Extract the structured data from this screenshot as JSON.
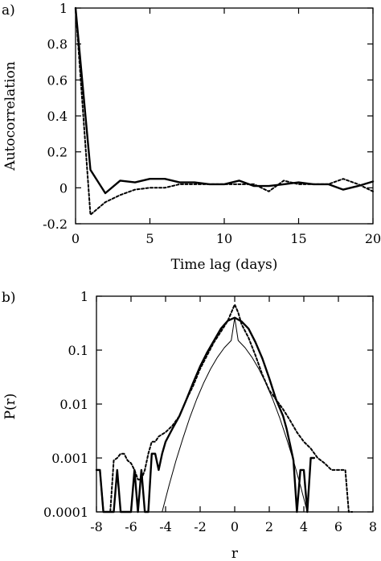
{
  "chart_data": [
    {
      "panel_label": "a)",
      "type": "line",
      "xlabel": "Time lag (days)",
      "ylabel": "Autocorrelation",
      "xlim": [
        0,
        20
      ],
      "ylim": [
        -0.2,
        1
      ],
      "xticks": [
        0,
        5,
        10,
        15,
        20
      ],
      "yticks": [
        -0.2,
        0,
        0.2,
        0.4,
        0.6,
        0.8,
        1
      ],
      "xtick_labels": [
        "0",
        "5",
        "10",
        "15",
        "20"
      ],
      "ytick_labels": [
        "-0.2",
        "0",
        "0.2",
        "0.4",
        "0.6",
        "0.8",
        "1"
      ],
      "grid": false,
      "series": [
        {
          "style": "solid",
          "x": [
            0,
            1,
            2,
            3,
            4,
            5,
            6,
            7,
            8,
            9,
            10,
            11,
            12,
            13,
            14,
            15,
            16,
            17,
            18,
            19,
            20
          ],
          "y": [
            1,
            0.1,
            -0.03,
            0.04,
            0.03,
            0.05,
            0.05,
            0.03,
            0.03,
            0.02,
            0.02,
            0.04,
            0.01,
            0.01,
            0.02,
            0.03,
            0.02,
            0.02,
            -0.01,
            0.01,
            0.035
          ]
        },
        {
          "style": "dotted",
          "x": [
            0,
            1,
            2,
            3,
            4,
            5,
            6,
            7,
            8,
            9,
            10,
            11,
            12,
            13,
            14,
            15,
            16,
            17,
            18,
            19,
            20
          ],
          "y": [
            1,
            -0.15,
            -0.08,
            -0.04,
            -0.01,
            0,
            0,
            0.02,
            0.02,
            0.02,
            0.02,
            0.02,
            0.02,
            -0.02,
            0.04,
            0.02,
            0.02,
            0.02,
            0.05,
            0.02,
            -0.02
          ]
        }
      ]
    },
    {
      "panel_label": "b)",
      "type": "line",
      "xlabel": "r",
      "ylabel": "P(r)",
      "xlim": [
        -8,
        8
      ],
      "ylim": [
        0.0001,
        1
      ],
      "yscale": "log",
      "xticks": [
        -8,
        -6,
        -4,
        -2,
        0,
        2,
        4,
        6,
        8
      ],
      "yticks": [
        0.0001,
        0.001,
        0.01,
        0.1,
        1
      ],
      "xtick_labels": [
        "-8",
        "-6",
        "-4",
        "-2",
        "0",
        "2",
        "4",
        "6",
        "8"
      ],
      "ytick_labels": [
        "0.0001",
        "0.001",
        "0.01",
        "0.1",
        "1"
      ],
      "grid": false,
      "series": [
        {
          "style": "solid-thick",
          "x": [
            -8.0,
            -7.8,
            -7.6,
            -7.4,
            -7.2,
            -7.0,
            -6.8,
            -6.6,
            -6.4,
            -6.2,
            -6.0,
            -5.8,
            -5.6,
            -5.4,
            -5.2,
            -5.0,
            -4.8,
            -4.6,
            -4.4,
            -4.2,
            -4.0,
            -3.6,
            -3.2,
            -2.8,
            -2.4,
            -2.0,
            -1.6,
            -1.2,
            -0.8,
            -0.4,
            0.0,
            0.4,
            0.8,
            1.2,
            1.6,
            2.0,
            2.4,
            2.8,
            3.0,
            3.2,
            3.4,
            3.6,
            3.8,
            4.0,
            4.2,
            4.4,
            4.6
          ],
          "y": [
            0.0006,
            0.0006,
            0.0001,
            0.0001,
            0.0001,
            0.0001,
            0.0006,
            0.0001,
            0.0001,
            0.0001,
            0.0001,
            0.0006,
            0.0001,
            0.0006,
            0.0001,
            0.0001,
            0.0012,
            0.0012,
            0.0006,
            0.0012,
            0.002,
            0.0035,
            0.006,
            0.012,
            0.025,
            0.05,
            0.09,
            0.15,
            0.25,
            0.35,
            0.4,
            0.34,
            0.25,
            0.14,
            0.07,
            0.03,
            0.012,
            0.006,
            0.0035,
            0.0018,
            0.0009,
            0.0001,
            0.0006,
            0.0006,
            0.0001,
            0.001,
            0.001
          ]
        },
        {
          "style": "dotted",
          "x": [
            -8.0,
            -7.8,
            -7.6,
            -7.2,
            -7.0,
            -6.8,
            -6.6,
            -6.4,
            -6.2,
            -6.0,
            -5.8,
            -5.6,
            -5.4,
            -5.2,
            -5.0,
            -4.8,
            -4.6,
            -4.4,
            -4.0,
            -3.6,
            -3.2,
            -2.8,
            -2.4,
            -2.0,
            -1.6,
            -1.2,
            -0.8,
            -0.4,
            0.0,
            0.2,
            0.4,
            0.8,
            1.2,
            1.6,
            2.0,
            2.4,
            2.8,
            3.2,
            3.6,
            4.0,
            4.4,
            4.8,
            5.2,
            5.6,
            6.0,
            6.4,
            6.6,
            6.8
          ],
          "y": [
            0.0006,
            0.0006,
            0.0001,
            0.0001,
            0.0009,
            0.001,
            0.0012,
            0.0012,
            0.0009,
            0.0008,
            0.0006,
            0.0004,
            0.0004,
            0.0006,
            0.0012,
            0.002,
            0.002,
            0.0025,
            0.003,
            0.004,
            0.006,
            0.012,
            0.022,
            0.045,
            0.08,
            0.14,
            0.22,
            0.35,
            0.7,
            0.5,
            0.3,
            0.17,
            0.08,
            0.035,
            0.018,
            0.012,
            0.008,
            0.005,
            0.003,
            0.002,
            0.0015,
            0.001,
            0.0008,
            0.0006,
            0.0006,
            0.0006,
            0.0001,
            0.0001
          ]
        },
        {
          "style": "solid-thin",
          "x": [
            -4.2,
            -3.8,
            -3.4,
            -3.0,
            -2.6,
            -2.2,
            -1.8,
            -1.4,
            -1.0,
            -0.6,
            -0.2,
            0.0,
            0.2,
            0.6,
            1.0,
            1.4,
            1.8,
            2.2,
            2.6,
            3.0,
            3.4,
            3.8,
            4.2
          ],
          "y": [
            0.0001,
            0.00031,
            0.00089,
            0.0023,
            0.0056,
            0.0123,
            0.0245,
            0.0446,
            0.0737,
            0.1109,
            0.1512,
            0.4,
            0.1512,
            0.1109,
            0.0737,
            0.0446,
            0.0245,
            0.0123,
            0.0056,
            0.0023,
            0.00089,
            0.00031,
            0.0001
          ]
        }
      ]
    }
  ]
}
